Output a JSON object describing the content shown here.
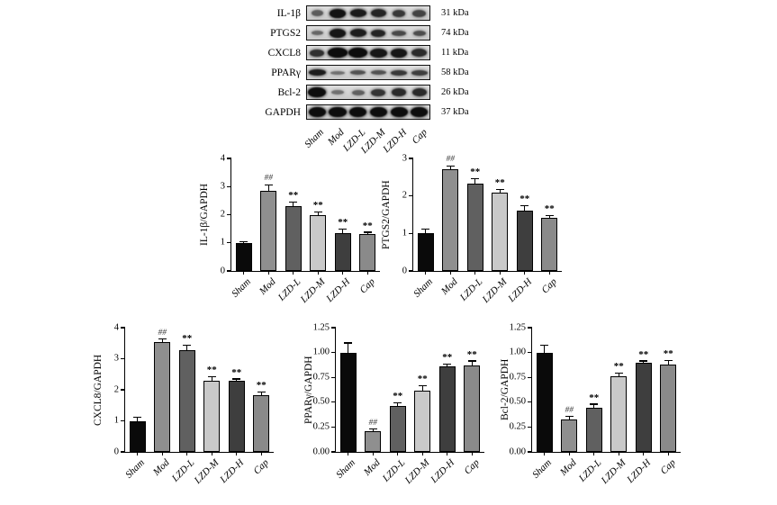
{
  "figure": {
    "background": "#ffffff"
  },
  "style": {
    "bar_colors": [
      "#0a0a0a",
      "#8f8f8f",
      "#606060",
      "#c9c9c9",
      "#3e3e3e",
      "#8a8a8a"
    ],
    "axis_color": "#000000",
    "blot_box_bg": "#d6d6d6",
    "band_color": "#0d0d0d"
  },
  "western_blot": {
    "lanes": [
      "Sham",
      "Mod",
      "LZD-L",
      "LZD-M",
      "LZD-H",
      "Cap"
    ],
    "rows": [
      {
        "label": "IL-1β",
        "kda": "31 kDa",
        "bands": [
          {
            "o": 0.6,
            "w": 0.6,
            "h": 7
          },
          {
            "o": 0.97,
            "w": 0.82,
            "h": 10
          },
          {
            "o": 0.93,
            "w": 0.78,
            "h": 9
          },
          {
            "o": 0.88,
            "w": 0.72,
            "h": 9
          },
          {
            "o": 0.78,
            "w": 0.65,
            "h": 8
          },
          {
            "o": 0.72,
            "w": 0.68,
            "h": 8
          }
        ]
      },
      {
        "label": "PTGS2",
        "kda": "74 kDa",
        "bands": [
          {
            "o": 0.55,
            "w": 0.58,
            "h": 5
          },
          {
            "o": 0.95,
            "w": 0.78,
            "h": 10
          },
          {
            "o": 0.92,
            "w": 0.78,
            "h": 9
          },
          {
            "o": 0.88,
            "w": 0.7,
            "h": 8
          },
          {
            "o": 0.7,
            "w": 0.68,
            "h": 6
          },
          {
            "o": 0.68,
            "w": 0.62,
            "h": 6
          }
        ]
      },
      {
        "label": "CXCL8",
        "kda": "11 kDa",
        "bands": [
          {
            "o": 0.82,
            "w": 0.72,
            "h": 8
          },
          {
            "o": 1,
            "w": 0.95,
            "h": 11
          },
          {
            "o": 1,
            "w": 0.92,
            "h": 11
          },
          {
            "o": 0.95,
            "w": 0.85,
            "h": 10
          },
          {
            "o": 0.95,
            "w": 0.82,
            "h": 10
          },
          {
            "o": 0.85,
            "w": 0.75,
            "h": 9
          }
        ]
      },
      {
        "label": "PPARγ",
        "kda": "58 kDa",
        "bands": [
          {
            "o": 0.92,
            "w": 0.85,
            "h": 7
          },
          {
            "o": 0.5,
            "w": 0.68,
            "h": 4
          },
          {
            "o": 0.65,
            "w": 0.75,
            "h": 5
          },
          {
            "o": 0.65,
            "w": 0.75,
            "h": 5
          },
          {
            "o": 0.78,
            "w": 0.8,
            "h": 6
          },
          {
            "o": 0.75,
            "w": 0.78,
            "h": 6
          }
        ]
      },
      {
        "label": "Bcl-2",
        "kda": "26 kDa",
        "bands": [
          {
            "o": 1,
            "w": 0.88,
            "h": 11
          },
          {
            "o": 0.5,
            "w": 0.58,
            "h": 5
          },
          {
            "o": 0.58,
            "w": 0.62,
            "h": 6
          },
          {
            "o": 0.8,
            "w": 0.7,
            "h": 8
          },
          {
            "o": 0.85,
            "w": 0.72,
            "h": 9
          },
          {
            "o": 0.85,
            "w": 0.7,
            "h": 9
          }
        ]
      },
      {
        "label": "GAPDH",
        "kda": "37 kDa",
        "bands": [
          {
            "o": 1,
            "w": 0.84,
            "h": 11
          },
          {
            "o": 1,
            "w": 0.84,
            "h": 11
          },
          {
            "o": 1,
            "w": 0.84,
            "h": 11
          },
          {
            "o": 1,
            "w": 0.84,
            "h": 11
          },
          {
            "o": 1,
            "w": 0.84,
            "h": 11
          },
          {
            "o": 1,
            "w": 0.84,
            "h": 11
          }
        ]
      }
    ]
  },
  "chart_data": [
    {
      "type": "bar",
      "title": "",
      "ylabel": "IL-1β/GAPDH",
      "xlabel": "",
      "categories": [
        "Sham",
        "Mod",
        "LZD-L",
        "LZD-M",
        "LZD-H",
        "Cap"
      ],
      "values": [
        1.0,
        2.85,
        2.32,
        1.97,
        1.33,
        1.3
      ],
      "errors": [
        0.03,
        0.2,
        0.12,
        0.1,
        0.15,
        0.06
      ],
      "annotations": [
        "",
        "##",
        "**",
        "**",
        "**",
        "**"
      ],
      "ylim": [
        0,
        4
      ],
      "yticks": [
        "0",
        "1",
        "2",
        "3",
        "4"
      ],
      "grid": false,
      "legend": null
    },
    {
      "type": "bar",
      "title": "",
      "ylabel": "PTGS2/GAPDH",
      "xlabel": "",
      "categories": [
        "Sham",
        "Mod",
        "LZD-L",
        "LZD-M",
        "LZD-H",
        "Cap"
      ],
      "values": [
        1.0,
        2.72,
        2.34,
        2.08,
        1.6,
        1.42
      ],
      "errors": [
        0.1,
        0.07,
        0.1,
        0.08,
        0.13,
        0.04
      ],
      "annotations": [
        "",
        "##",
        "**",
        "**",
        "**",
        "**"
      ],
      "ylim": [
        0,
        3
      ],
      "yticks": [
        "0",
        "1",
        "2",
        "3"
      ],
      "grid": false,
      "legend": null
    },
    {
      "type": "bar",
      "title": "",
      "ylabel": "CXCL8/GAPDH",
      "xlabel": "",
      "categories": [
        "Sham",
        "Mod",
        "LZD-L",
        "LZD-M",
        "LZD-H",
        "Cap"
      ],
      "values": [
        1.0,
        3.54,
        3.27,
        2.3,
        2.28,
        1.82
      ],
      "errors": [
        0.1,
        0.08,
        0.14,
        0.1,
        0.05,
        0.09
      ],
      "annotations": [
        "",
        "##",
        "**",
        "**",
        "**",
        "**"
      ],
      "ylim": [
        0,
        4
      ],
      "yticks": [
        "0",
        "1",
        "2",
        "3",
        "4"
      ],
      "grid": false,
      "legend": null
    },
    {
      "type": "bar",
      "title": "",
      "ylabel": "PPARγ/GAPDH",
      "xlabel": "",
      "categories": [
        "Sham",
        "Mod",
        "LZD-L",
        "LZD-M",
        "LZD-H",
        "Cap"
      ],
      "values": [
        1.0,
        0.21,
        0.46,
        0.62,
        0.86,
        0.87
      ],
      "errors": [
        0.09,
        0.015,
        0.03,
        0.04,
        0.02,
        0.04
      ],
      "annotations": [
        "",
        "##",
        "**",
        "**",
        "**",
        "**"
      ],
      "ylim": [
        0,
        1.25
      ],
      "yticks": [
        "0.00",
        "0.25",
        "0.50",
        "0.75",
        "1.00",
        "1.25"
      ],
      "grid": false,
      "legend": null
    },
    {
      "type": "bar",
      "title": "",
      "ylabel": "Bcl-2/GAPDH",
      "xlabel": "",
      "categories": [
        "Sham",
        "Mod",
        "LZD-L",
        "LZD-M",
        "LZD-H",
        "Cap"
      ],
      "values": [
        1.0,
        0.33,
        0.44,
        0.76,
        0.9,
        0.88
      ],
      "errors": [
        0.07,
        0.02,
        0.035,
        0.025,
        0.01,
        0.035
      ],
      "annotations": [
        "",
        "##",
        "**",
        "**",
        "**",
        "**"
      ],
      "ylim": [
        0,
        1.25
      ],
      "yticks": [
        "0.00",
        "0.25",
        "0.50",
        "0.75",
        "1.00",
        "1.25"
      ],
      "grid": false,
      "legend": null
    }
  ]
}
